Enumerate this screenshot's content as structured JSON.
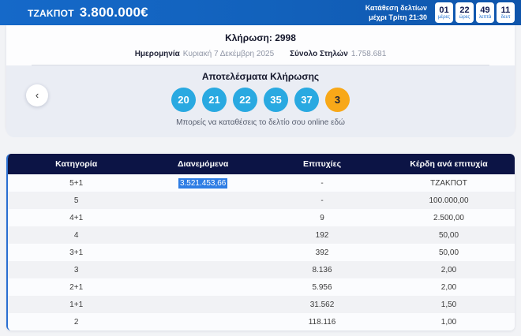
{
  "jackpot_bar": {
    "label": "ΤΖΑΚΠΟΤ",
    "amount": "3.800.000€",
    "deadline_line1": "Κατάθεση δελτίων",
    "deadline_line2": "μέχρι Τρίτη 21:30",
    "countdown": [
      {
        "value": "01",
        "unit": "μέρες"
      },
      {
        "value": "22",
        "unit": "ώρες"
      },
      {
        "value": "49",
        "unit": "λεπτά"
      },
      {
        "value": "11",
        "unit": "δευτ"
      }
    ]
  },
  "draw": {
    "title": "Κλήρωση: 2998",
    "date_label": "Ημερομηνία",
    "date_value": "Κυριακή 7 Δεκέμβρη 2025",
    "columns_label": "Σύνολο Στηλών",
    "columns_value": "1.758.681",
    "results_title": "Αποτελέσματα Κλήρωσης",
    "numbers": [
      "20",
      "21",
      "22",
      "35",
      "37"
    ],
    "bonus_number": "3",
    "online_text": "Μπορείς να καταθέσεις το δελτίο σου online",
    "online_link": "εδώ",
    "prev_arrow": "‹"
  },
  "table": {
    "headers": [
      "Κατηγορία",
      "Διανεμόμενα",
      "Επιτυχίες",
      "Κέρδη ανά επιτυχία"
    ],
    "rows": [
      {
        "category": "5+1",
        "distributed": "3.521.453,66",
        "distributed_selected": true,
        "winners": "-",
        "prize": "ΤΖΑΚΠΟΤ"
      },
      {
        "category": "5",
        "distributed": "",
        "winners": "-",
        "prize": "100.000,00"
      },
      {
        "category": "4+1",
        "distributed": "",
        "winners": "9",
        "prize": "2.500,00"
      },
      {
        "category": "4",
        "distributed": "",
        "winners": "192",
        "prize": "50,00"
      },
      {
        "category": "3+1",
        "distributed": "",
        "winners": "392",
        "prize": "50,00"
      },
      {
        "category": "3",
        "distributed": "",
        "winners": "8.136",
        "prize": "2,00"
      },
      {
        "category": "2+1",
        "distributed": "",
        "winners": "5.956",
        "prize": "2,00"
      },
      {
        "category": "1+1",
        "distributed": "",
        "winners": "31.562",
        "prize": "1,50"
      },
      {
        "category": "2",
        "distributed": "",
        "winners": "118.116",
        "prize": "1,00"
      }
    ]
  },
  "colors": {
    "topbar_blue": "#1263be",
    "ball_blue": "#29a9e1",
    "ball_bonus_orange": "#f8a818",
    "table_header_navy": "#0c1445",
    "selection_blue": "#2e7de4",
    "accent_border_blue": "#2a6fd2"
  }
}
